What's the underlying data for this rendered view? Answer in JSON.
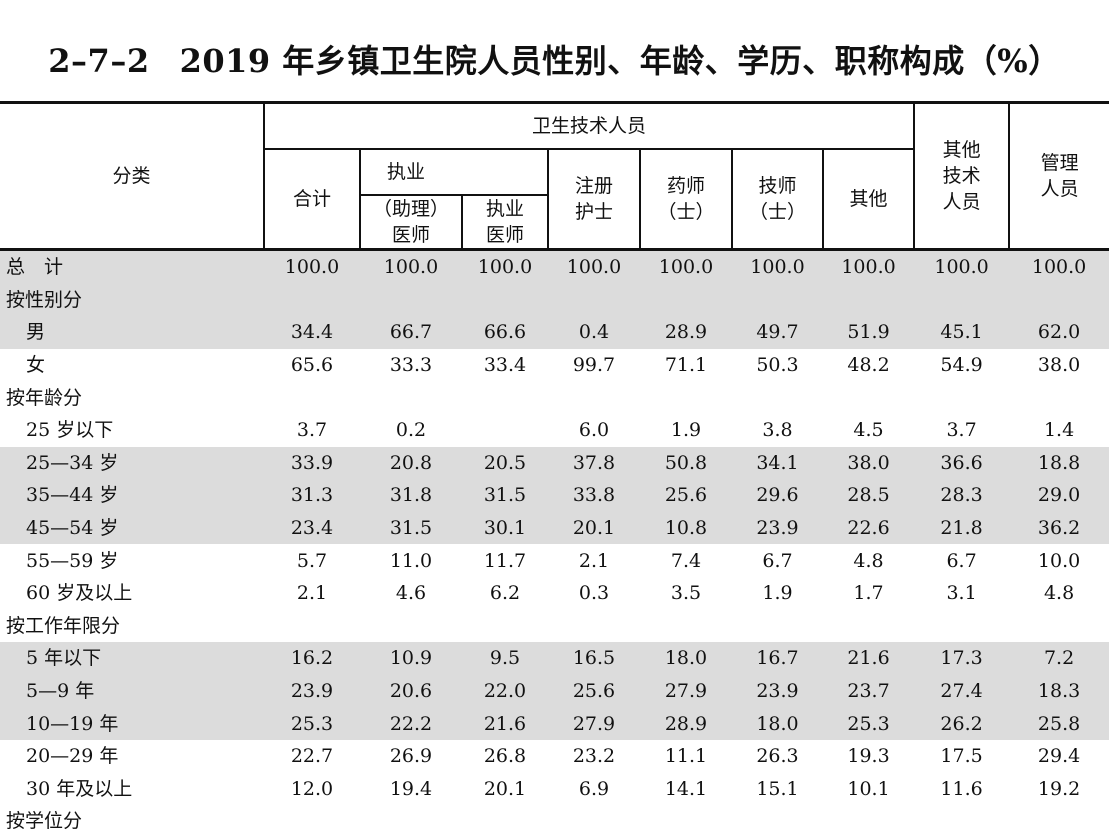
{
  "title": {
    "code": "2–7–2",
    "text": "2019 年乡镇卫生院人员性别、年龄、学历、职称构成（%）"
  },
  "header": {
    "category": "分类",
    "group": "卫生技术人员",
    "total": "合计",
    "licensed_line1": "执业",
    "licensed_line2": "（助理）",
    "licensed_line3": "医师",
    "doctor_line1": "执业",
    "doctor_line2": "医师",
    "nurse_line1": "注册",
    "nurse_line2": "护士",
    "pharm_line1": "药师",
    "pharm_line2": "（士）",
    "tech_line1": "技师",
    "tech_line2": "（士）",
    "other": "其他",
    "other_tech_line1": "其他",
    "other_tech_line2": "技术",
    "other_tech_line3": "人员",
    "mgmt_line1": "管理",
    "mgmt_line2": "人员"
  },
  "rows": [
    {
      "label": "总　计",
      "values": [
        "100.0",
        "100.0",
        "100.0",
        "100.0",
        "100.0",
        "100.0",
        "100.0",
        "100.0",
        "100.0"
      ]
    },
    {
      "label": "按性别分",
      "values": [
        "",
        "",
        "",
        "",
        "",
        "",
        "",
        "",
        ""
      ]
    },
    {
      "label": "男",
      "values": [
        "34.4",
        "66.7",
        "66.6",
        "0.4",
        "28.9",
        "49.7",
        "51.9",
        "45.1",
        "62.0"
      ]
    },
    {
      "label": "女",
      "values": [
        "65.6",
        "33.3",
        "33.4",
        "99.7",
        "71.1",
        "50.3",
        "48.2",
        "54.9",
        "38.0"
      ]
    },
    {
      "label": "按年龄分",
      "values": [
        "",
        "",
        "",
        "",
        "",
        "",
        "",
        "",
        ""
      ]
    },
    {
      "label": "25 岁以下",
      "values": [
        "3.7",
        "0.2",
        "",
        "6.0",
        "1.9",
        "3.8",
        "4.5",
        "3.7",
        "1.4"
      ]
    },
    {
      "label": "25—34 岁",
      "values": [
        "33.9",
        "20.8",
        "20.5",
        "37.8",
        "50.8",
        "34.1",
        "38.0",
        "36.6",
        "18.8"
      ]
    },
    {
      "label": "35—44 岁",
      "values": [
        "31.3",
        "31.8",
        "31.5",
        "33.8",
        "25.6",
        "29.6",
        "28.5",
        "28.3",
        "29.0"
      ]
    },
    {
      "label": "45—54 岁",
      "values": [
        "23.4",
        "31.5",
        "30.1",
        "20.1",
        "10.8",
        "23.9",
        "22.6",
        "21.8",
        "36.2"
      ]
    },
    {
      "label": "55—59 岁",
      "values": [
        "5.7",
        "11.0",
        "11.7",
        "2.1",
        "7.4",
        "6.7",
        "4.8",
        "6.7",
        "10.0"
      ]
    },
    {
      "label": "60 岁及以上",
      "values": [
        "2.1",
        "4.6",
        "6.2",
        "0.3",
        "3.5",
        "1.9",
        "1.7",
        "3.1",
        "4.8"
      ]
    },
    {
      "label": "按工作年限分",
      "values": [
        "",
        "",
        "",
        "",
        "",
        "",
        "",
        "",
        ""
      ]
    },
    {
      "label": "5 年以下",
      "values": [
        "16.2",
        "10.9",
        "9.5",
        "16.5",
        "18.0",
        "16.7",
        "21.6",
        "17.3",
        "7.2"
      ]
    },
    {
      "label": "5—9 年",
      "values": [
        "23.9",
        "20.6",
        "22.0",
        "25.6",
        "27.9",
        "23.9",
        "23.7",
        "27.4",
        "18.3"
      ]
    },
    {
      "label": "10—19 年",
      "values": [
        "25.3",
        "22.2",
        "21.6",
        "27.9",
        "28.9",
        "18.0",
        "25.3",
        "26.2",
        "25.8"
      ]
    },
    {
      "label": "20—29 年",
      "values": [
        "22.7",
        "26.9",
        "26.8",
        "23.2",
        "11.1",
        "26.3",
        "19.3",
        "17.5",
        "29.4"
      ]
    },
    {
      "label": "30 年及以上",
      "values": [
        "12.0",
        "19.4",
        "20.1",
        "6.9",
        "14.1",
        "15.1",
        "10.1",
        "11.6",
        "19.2"
      ]
    },
    {
      "label": "按学位分",
      "values": [
        "",
        "",
        "",
        "",
        "",
        "",
        "",
        "",
        ""
      ]
    }
  ]
}
